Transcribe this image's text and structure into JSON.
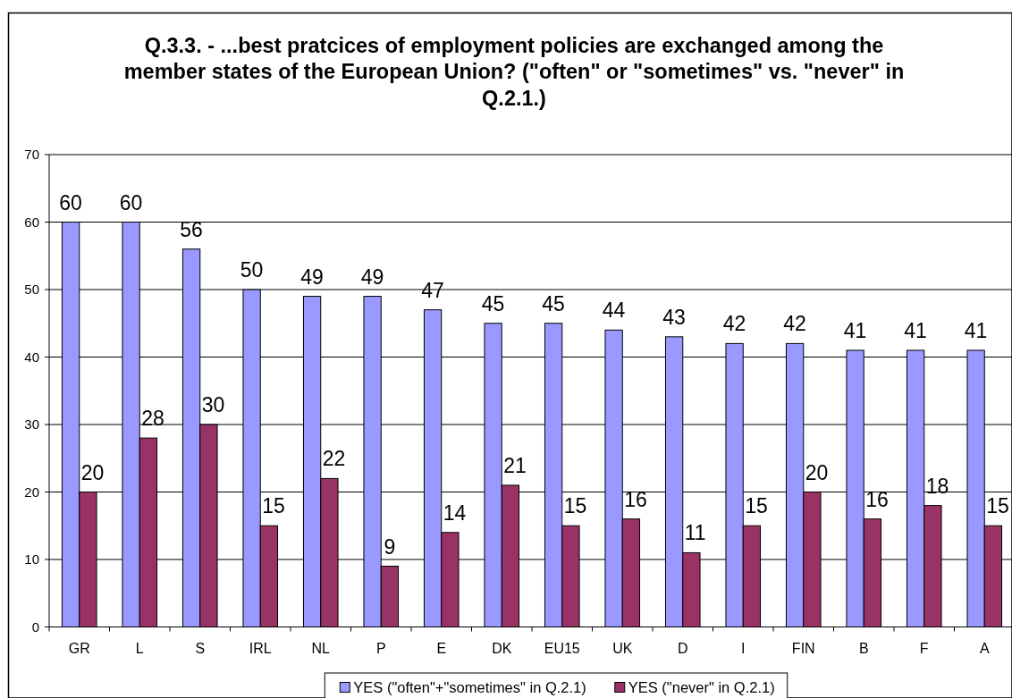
{
  "chart_data": {
    "type": "bar",
    "title": "Q.3.3. - ...best pratcices of employment policies are exchanged among the member states of the European Union? (\"often\" or \"sometimes\" vs. \"never\" in Q.2.1.)",
    "categories": [
      "GR",
      "L",
      "S",
      "IRL",
      "NL",
      "P",
      "E",
      "DK",
      "EU15",
      "UK",
      "D",
      "I",
      "FIN",
      "B",
      "F",
      "A"
    ],
    "series": [
      {
        "name": "YES (\"often\"+\"sometimes\" in Q.2.1)",
        "color": "#9999ff",
        "values": [
          60,
          60,
          56,
          50,
          49,
          49,
          47,
          45,
          45,
          44,
          43,
          42,
          42,
          41,
          41,
          41
        ]
      },
      {
        "name": "YES (\"never\" in Q.2.1)",
        "color": "#993366",
        "values": [
          20,
          28,
          30,
          15,
          22,
          9,
          14,
          21,
          15,
          16,
          11,
          15,
          20,
          16,
          18,
          15
        ]
      }
    ],
    "ylim": [
      0,
      70
    ],
    "yticks": [
      0,
      10,
      20,
      30,
      40,
      50,
      60,
      70
    ],
    "grid": "y",
    "legend": "bottom",
    "data_labels": true
  }
}
